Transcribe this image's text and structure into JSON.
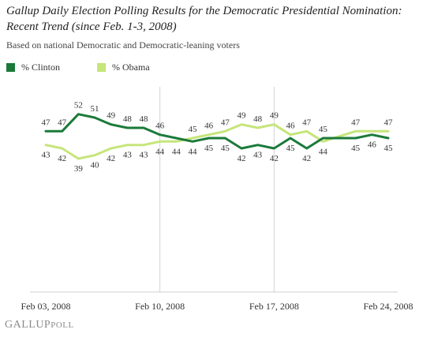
{
  "header": {
    "title": "Gallup Daily Election Polling Results for the Democratic Presidential Nomination: Recent Trend (since Feb. 1-3, 2008)",
    "subtitle": "Based on national Democratic and Democratic-leaning voters"
  },
  "logo": {
    "main": "GALLUP",
    "suffix": "POLL"
  },
  "chart_data": {
    "type": "line",
    "x": [
      "Feb 03, 2008",
      "Feb 04, 2008",
      "Feb 05, 2008",
      "Feb 06, 2008",
      "Feb 07, 2008",
      "Feb 08, 2008",
      "Feb 09, 2008",
      "Feb 10, 2008",
      "Feb 11, 2008",
      "Feb 12, 2008",
      "Feb 13, 2008",
      "Feb 14, 2008",
      "Feb 15, 2008",
      "Feb 16, 2008",
      "Feb 17, 2008",
      "Feb 18, 2008",
      "Feb 19, 2008",
      "Feb 20, 2008",
      "Feb 21, 2008",
      "Feb 22, 2008",
      "Feb 23, 2008",
      "Feb 24, 2008"
    ],
    "xticks": [
      "Feb 03, 2008",
      "Feb 10, 2008",
      "Feb 17, 2008",
      "Feb 24, 2008"
    ],
    "series": [
      {
        "name": "% Clinton",
        "color": "#1b7a3a",
        "values": [
          47,
          47,
          52,
          51,
          49,
          48,
          48,
          46,
          45,
          44,
          45,
          45,
          42,
          43,
          42,
          45,
          42,
          45,
          45,
          45,
          46,
          45
        ]
      },
      {
        "name": "% Obama",
        "color": "#c6e57a",
        "values": [
          43,
          42,
          39,
          40,
          42,
          43,
          43,
          44,
          44,
          45,
          46,
          47,
          49,
          48,
          49,
          46,
          47,
          44,
          null,
          47,
          47,
          47
        ]
      }
    ],
    "labels": {
      "clinton": [
        47,
        47,
        52,
        51,
        49,
        48,
        48,
        46,
        null,
        44,
        45,
        45,
        42,
        43,
        42,
        45,
        42,
        45,
        null,
        45,
        46,
        45
      ],
      "obama": [
        43,
        42,
        39,
        40,
        42,
        43,
        43,
        44,
        44,
        45,
        46,
        47,
        49,
        48,
        49,
        46,
        47,
        44,
        null,
        47,
        null,
        47
      ]
    },
    "ylim": [
      0,
      60
    ],
    "grid": "vertical lines at tick dates",
    "legend": "top-left"
  }
}
